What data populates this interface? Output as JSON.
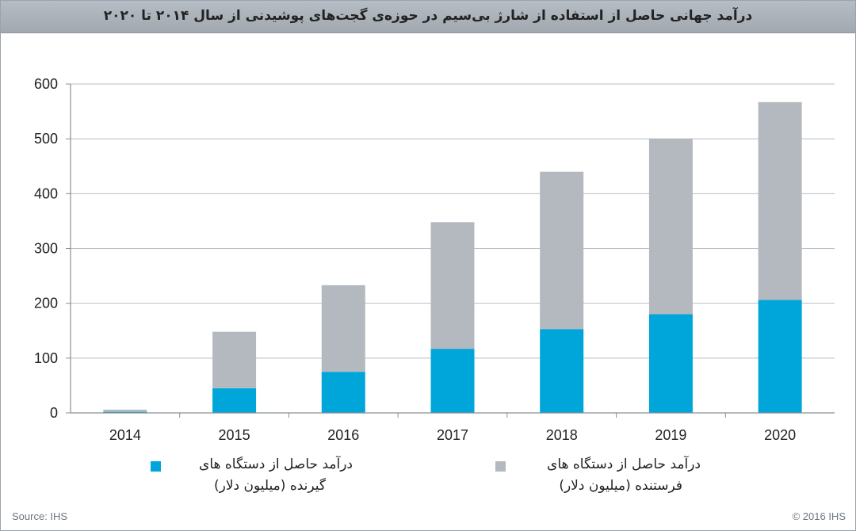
{
  "chart_data": {
    "type": "bar",
    "stacked": true,
    "title": "درآمد جهانی حاصل از استفاده از شارژ بی‌سیم در حوزه‌ی گجت‌های پوشیدنی از سال ۲۰۱۴ تا ۲۰۲۰",
    "categories": [
      "2014",
      "2015",
      "2016",
      "2017",
      "2018",
      "2019",
      "2020"
    ],
    "series": [
      {
        "name": "درآمد حاصل از دستگاه های گیرنده (میلیون دلار)",
        "color": "#00a6d9",
        "values": [
          2,
          45,
          75,
          117,
          153,
          180,
          206
        ]
      },
      {
        "name": "درآمد حاصل از دستگاه های فرستنده (میلیون دلار)",
        "color": "#b4b9bf",
        "values": [
          4,
          103,
          158,
          231,
          287,
          320,
          361
        ]
      }
    ],
    "ylim": [
      0,
      600
    ],
    "yticks": [
      0,
      100,
      200,
      300,
      400,
      500,
      600
    ],
    "grid": true,
    "legend_position": "bottom"
  },
  "legend": {
    "receiver_line1": "درآمد حاصل از دستگاه های",
    "receiver_line2": "گیرنده (میلیون دلار)",
    "sender_line1": "درآمد حاصل از دستگاه های",
    "sender_line2": "فرستنده (میلیون دلار)"
  },
  "source": "Source: IHS",
  "copyright": "© 2016 IHS"
}
